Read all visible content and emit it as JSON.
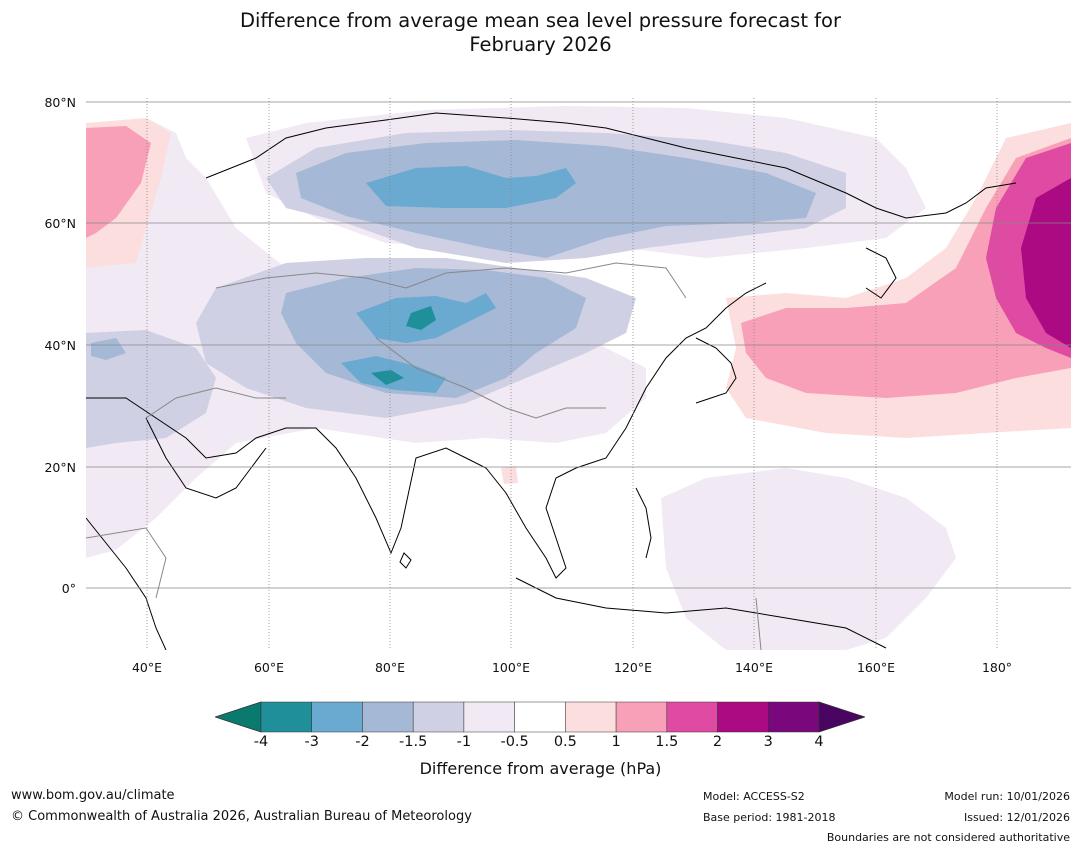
{
  "title_line1": "Difference from average mean sea level pressure forecast for",
  "title_line2": "February 2026",
  "lat_labels": [
    "80°N",
    "60°N",
    "40°N",
    "20°N",
    "0°"
  ],
  "lon_labels": [
    "40°E",
    "60°E",
    "80°E",
    "100°E",
    "120°E",
    "140°E",
    "160°E",
    "180°"
  ],
  "colorbar": {
    "ticks": [
      "-4",
      "-3",
      "-2",
      "-1.5",
      "-1",
      "-0.5",
      "0.5",
      "1",
      "1.5",
      "2",
      "3",
      "4"
    ],
    "colors": [
      "#0b7a6e",
      "#1f8f9a",
      "#6aaad0",
      "#a5b8d6",
      "#cfd0e3",
      "#f1e9f3",
      "#ffffff",
      "#fddede",
      "#f8a0b8",
      "#df4aa2",
      "#ab0a82",
      "#7a087c",
      "#4a0461"
    ],
    "label": "Difference from average (hPa)"
  },
  "footer": {
    "url": "www.bom.gov.au/climate",
    "copyright": "© Commonwealth of Australia 2026, Australian Bureau of Meteorology",
    "model": "Model: ACCESS-S2",
    "base_period": "Base period: 1981-2018",
    "model_run": "Model run: 10/01/2026",
    "issued": "Issued: 12/01/2026",
    "boundaries": "Boundaries are not considered authoritative"
  }
}
